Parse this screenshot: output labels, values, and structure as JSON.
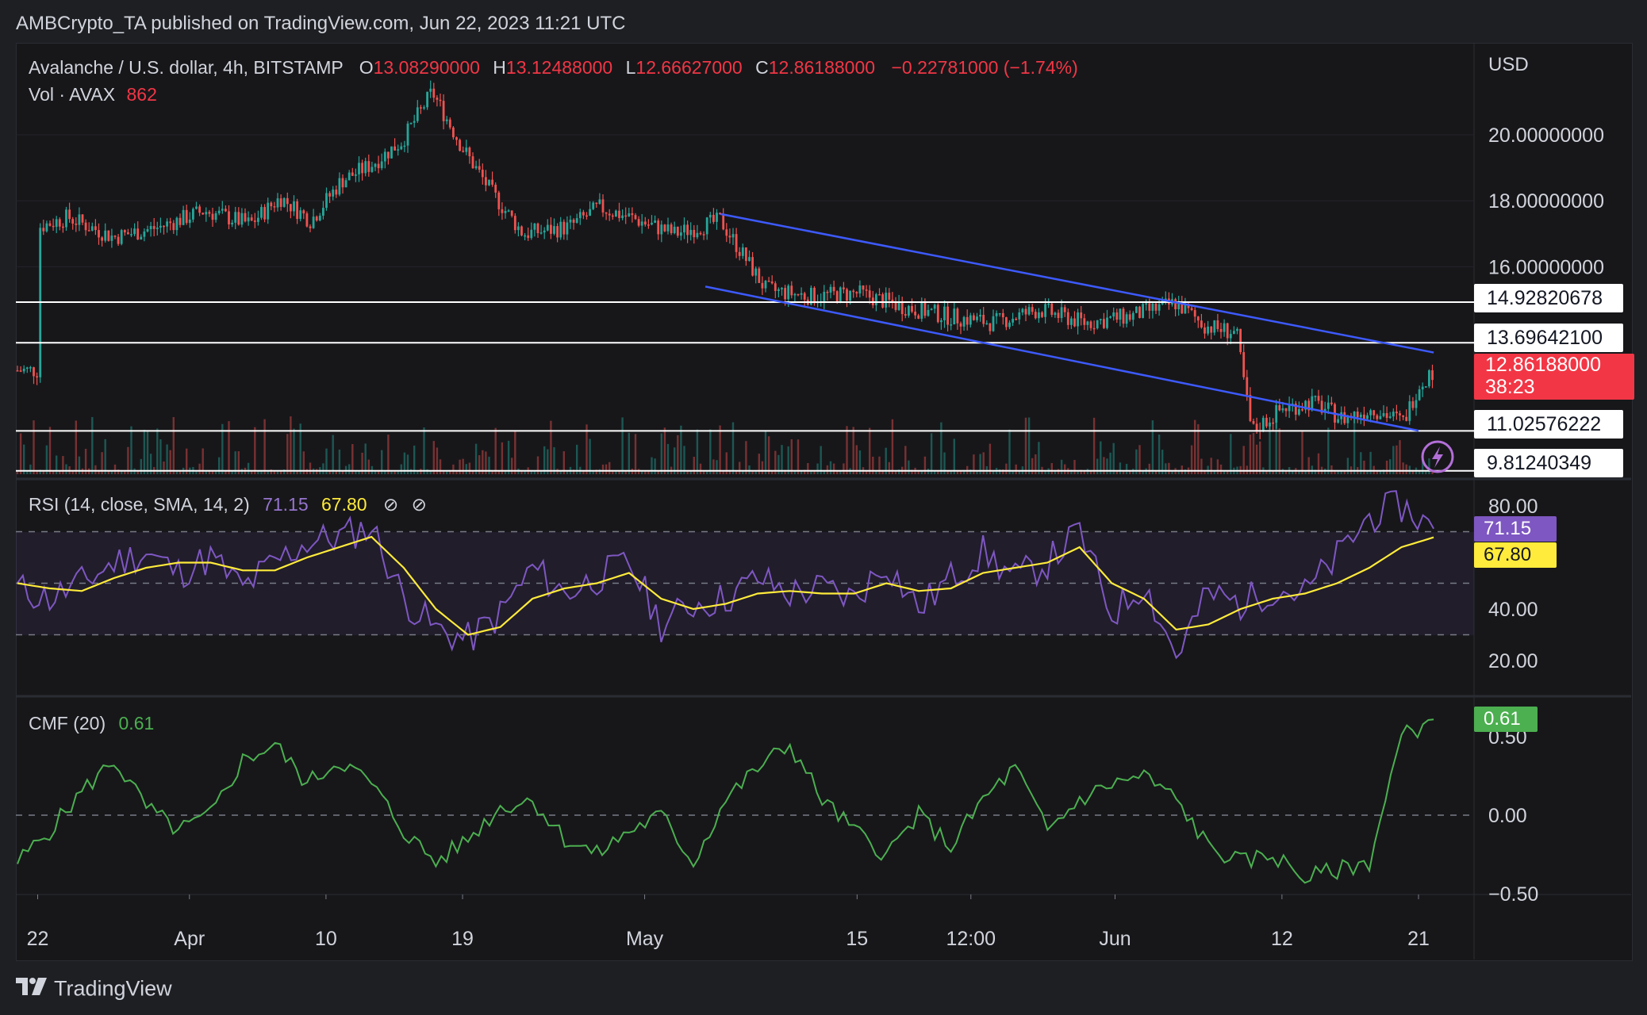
{
  "publisher_line": "AMBCrypto_TA published on TradingView.com, Jun 22, 2023 11:21 UTC",
  "brand": "TradingView",
  "colors": {
    "bg": "#17171a",
    "up": "#26a69a",
    "down": "#ef5350",
    "trendline": "#3d5afe",
    "rsi": "#7e57c2",
    "rsi_sma": "#ffeb3b",
    "cmf": "#4caf50",
    "red_label": "#f23645"
  },
  "legend": {
    "symbol": "Avalanche / U.S. dollar, 4h, BITSTAMP",
    "o_label": "O",
    "o_value": "13.08290000",
    "h_label": "H",
    "h_value": "13.12488000",
    "l_label": "L",
    "l_value": "12.66627000",
    "c_label": "C",
    "c_value": "12.86188000",
    "change": "−0.22781000 (−1.74%)",
    "vol_label": "Vol · AVAX",
    "vol_value": "862"
  },
  "rsi_legend": {
    "label": "RSI (14, close, SMA, 14, 2)",
    "rsi_value": "71.15",
    "sma_value": "67.80"
  },
  "cmf_legend": {
    "label": "CMF (20)",
    "value": "0.61"
  },
  "price_axis": {
    "currency": "USD",
    "ticks": [
      "20.00000000",
      "18.00000000",
      "16.00000000"
    ]
  },
  "rsi_axis": {
    "ticks": [
      "80.00",
      "40.00",
      "20.00"
    ]
  },
  "cmf_axis": {
    "ticks": [
      "0.50",
      "0.00",
      "−0.50"
    ]
  },
  "time_axis": {
    "labels": [
      "22",
      "Apr",
      "10",
      "19",
      "May",
      "15",
      "12:00",
      "Jun",
      "12",
      "21"
    ]
  },
  "level_labels": [
    {
      "value": "14.92820678",
      "price": 14.928
    },
    {
      "value": "13.69642100",
      "price": 13.696
    },
    {
      "value": "11.02576222",
      "price": 11.026
    },
    {
      "value": "9.81240349",
      "price": 9.812
    }
  ],
  "last_price": {
    "value": "12.86188000",
    "countdown": "38:23"
  },
  "chart_data": [
    {
      "type": "candlestick",
      "title": "Avalanche / U.S. dollar, 4h, BITSTAMP",
      "x_range": [
        "2023-03-22",
        "2023-06-22"
      ],
      "ylim": [
        9.4,
        22.5
      ],
      "y_unit": "USD",
      "close_path": [
        {
          "date": "2023-03-22",
          "close": 17.2
        },
        {
          "date": "2023-03-24",
          "close": 17.5
        },
        {
          "date": "2023-03-27",
          "close": 16.9
        },
        {
          "date": "2023-03-30",
          "close": 17.2
        },
        {
          "date": "2023-04-02",
          "close": 17.7
        },
        {
          "date": "2023-04-05",
          "close": 17.3
        },
        {
          "date": "2023-04-07",
          "close": 18.1
        },
        {
          "date": "2023-04-09",
          "close": 17.4
        },
        {
          "date": "2023-04-11",
          "close": 18.6
        },
        {
          "date": "2023-04-13",
          "close": 19.1
        },
        {
          "date": "2023-04-15",
          "close": 19.8
        },
        {
          "date": "2023-04-17",
          "close": 21.3
        },
        {
          "date": "2023-04-19",
          "close": 19.6
        },
        {
          "date": "2023-04-21",
          "close": 18.2
        },
        {
          "date": "2023-04-23",
          "close": 17.0
        },
        {
          "date": "2023-04-26",
          "close": 17.2
        },
        {
          "date": "2023-04-28",
          "close": 17.8
        },
        {
          "date": "2023-04-30",
          "close": 17.5
        },
        {
          "date": "2023-05-03",
          "close": 17.0
        },
        {
          "date": "2023-05-06",
          "close": 17.4
        },
        {
          "date": "2023-05-09",
          "close": 15.3
        },
        {
          "date": "2023-05-12",
          "close": 15.1
        },
        {
          "date": "2023-05-15",
          "close": 15.2
        },
        {
          "date": "2023-05-18",
          "close": 14.8
        },
        {
          "date": "2023-05-21",
          "close": 14.5
        },
        {
          "date": "2023-05-24",
          "close": 14.3
        },
        {
          "date": "2023-05-27",
          "close": 14.7
        },
        {
          "date": "2023-05-30",
          "close": 14.3
        },
        {
          "date": "2023-06-02",
          "close": 14.5
        },
        {
          "date": "2023-06-05",
          "close": 14.9
        },
        {
          "date": "2023-06-07",
          "close": 14.2
        },
        {
          "date": "2023-06-09",
          "close": 14.0
        },
        {
          "date": "2023-06-10",
          "close": 11.0
        },
        {
          "date": "2023-06-12",
          "close": 11.7
        },
        {
          "date": "2023-06-14",
          "close": 11.9
        },
        {
          "date": "2023-06-16",
          "close": 11.4
        },
        {
          "date": "2023-06-18",
          "close": 11.7
        },
        {
          "date": "2023-06-20",
          "close": 11.3
        },
        {
          "date": "2023-06-21",
          "close": 12.4
        },
        {
          "date": "2023-06-22",
          "close": 12.86
        }
      ],
      "horizontal_levels": [
        14.92820678,
        13.696421,
        11.02576222,
        9.81240349
      ],
      "trendlines": [
        {
          "from": {
            "date": "2023-05-06",
            "price": 17.6
          },
          "to": {
            "date": "2023-06-22",
            "price": 13.4
          }
        },
        {
          "from": {
            "date": "2023-05-05",
            "price": 15.4
          },
          "to": {
            "date": "2023-06-21",
            "price": 11.03
          }
        }
      ]
    },
    {
      "type": "line",
      "title": "RSI (14, close, SMA, 14, 2)",
      "ylim": [
        10,
        85
      ],
      "bands": [
        30,
        50,
        70
      ],
      "series": [
        {
          "name": "RSI",
          "values": [
            48,
            44,
            50,
            58,
            62,
            54,
            60,
            48,
            58,
            66,
            68,
            72,
            44,
            32,
            28,
            38,
            56,
            46,
            52,
            58,
            34,
            42,
            44,
            52,
            46,
            48,
            44,
            58,
            40,
            52,
            62,
            52,
            58,
            70,
            38,
            50,
            22,
            46,
            42,
            48,
            46,
            60,
            76,
            80,
            71.15
          ]
        },
        {
          "name": "SMA",
          "values": [
            50,
            48,
            47,
            52,
            56,
            58,
            58,
            55,
            55,
            60,
            64,
            68,
            56,
            40,
            30,
            33,
            44,
            48,
            50,
            54,
            44,
            40,
            42,
            46,
            47,
            46,
            46,
            50,
            47,
            48,
            54,
            56,
            58,
            64,
            50,
            44,
            32,
            34,
            40,
            44,
            46,
            50,
            56,
            64,
            67.8
          ]
        }
      ]
    },
    {
      "type": "line",
      "title": "CMF (20)",
      "ylim": [
        -0.62,
        0.72
      ],
      "series": [
        {
          "name": "CMF",
          "values": [
            -0.3,
            -0.1,
            0.15,
            0.35,
            0.05,
            -0.1,
            0.0,
            0.35,
            0.45,
            0.2,
            0.35,
            0.2,
            -0.1,
            -0.3,
            -0.15,
            0.05,
            0.1,
            -0.15,
            -0.25,
            -0.1,
            0.0,
            -0.3,
            0.1,
            0.3,
            0.45,
            0.1,
            -0.1,
            -0.25,
            0.0,
            -0.2,
            0.1,
            0.3,
            -0.1,
            0.1,
            0.2,
            0.25,
            0.1,
            -0.2,
            -0.3,
            -0.25,
            -0.4,
            -0.35,
            -0.3,
            0.5,
            0.61
          ]
        }
      ]
    }
  ]
}
